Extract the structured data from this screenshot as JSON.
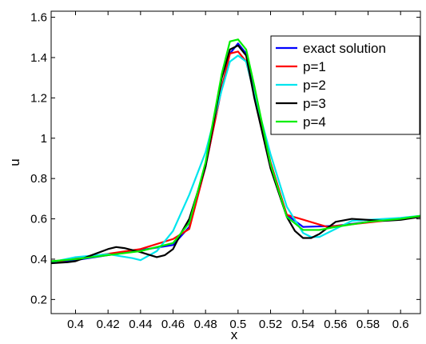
{
  "chart_data": {
    "type": "line",
    "xlabel": "x",
    "ylabel": "u",
    "xlim": [
      0.385,
      0.6122
    ],
    "ylim": [
      0.13,
      1.63
    ],
    "xticks": [
      0.4,
      0.42,
      0.44,
      0.46,
      0.48,
      0.5,
      0.52,
      0.54,
      0.56,
      0.58,
      0.6
    ],
    "xtick_labels": [
      "0.4",
      "0.42",
      "0.44",
      "0.46",
      "0.48",
      "0.5",
      "0.52",
      "0.54",
      "0.56",
      "0.58",
      "0.6"
    ],
    "yticks": [
      0.2,
      0.4,
      0.6,
      0.8,
      1.0,
      1.2,
      1.4,
      1.6
    ],
    "ytick_labels": [
      "0.2",
      "0.4",
      "0.6",
      "0.8",
      "1",
      "1.2",
      "1.4",
      "1.6"
    ],
    "grid": false,
    "legend_position": "top-right",
    "series": [
      {
        "name": "exact solution",
        "color": "#0000ff",
        "x": [
          0.385,
          0.4,
          0.42,
          0.44,
          0.46,
          0.47,
          0.48,
          0.49,
          0.495,
          0.5,
          0.505,
          0.51,
          0.52,
          0.53,
          0.54,
          0.56,
          0.58,
          0.6,
          0.6122
        ],
        "y": [
          0.38,
          0.395,
          0.42,
          0.445,
          0.47,
          0.56,
          0.86,
          1.25,
          1.42,
          1.47,
          1.42,
          1.25,
          0.86,
          0.62,
          0.56,
          0.565,
          0.585,
          0.6,
          0.615
        ]
      },
      {
        "name": "p=1",
        "color": "#ff0000",
        "x": [
          0.385,
          0.44,
          0.46,
          0.47,
          0.48,
          0.49,
          0.495,
          0.5,
          0.505,
          0.51,
          0.52,
          0.53,
          0.555,
          0.6122
        ],
        "y": [
          0.385,
          0.45,
          0.5,
          0.55,
          0.86,
          1.25,
          1.42,
          1.43,
          1.38,
          1.22,
          0.88,
          0.62,
          0.56,
          0.61
        ]
      },
      {
        "name": "p=2",
        "color": "#00e5ee",
        "x": [
          0.385,
          0.4,
          0.42,
          0.435,
          0.44,
          0.45,
          0.46,
          0.47,
          0.48,
          0.49,
          0.495,
          0.5,
          0.505,
          0.51,
          0.52,
          0.53,
          0.54,
          0.545,
          0.55,
          0.56,
          0.57,
          0.6,
          0.6122
        ],
        "y": [
          0.385,
          0.41,
          0.425,
          0.405,
          0.395,
          0.44,
          0.54,
          0.72,
          0.93,
          1.24,
          1.38,
          1.41,
          1.38,
          1.22,
          0.92,
          0.66,
          0.53,
          0.51,
          0.51,
          0.55,
          0.59,
          0.605,
          0.615
        ]
      },
      {
        "name": "p=3",
        "color": "#000000",
        "x": [
          0.385,
          0.395,
          0.4,
          0.41,
          0.42,
          0.425,
          0.43,
          0.44,
          0.45,
          0.455,
          0.46,
          0.465,
          0.47,
          0.48,
          0.49,
          0.495,
          0.5,
          0.505,
          0.51,
          0.52,
          0.53,
          0.535,
          0.54,
          0.545,
          0.55,
          0.56,
          0.57,
          0.58,
          0.59,
          0.6,
          0.6122
        ],
        "y": [
          0.38,
          0.385,
          0.39,
          0.42,
          0.45,
          0.46,
          0.455,
          0.435,
          0.41,
          0.42,
          0.45,
          0.53,
          0.6,
          0.86,
          1.3,
          1.44,
          1.46,
          1.41,
          1.2,
          0.85,
          0.61,
          0.54,
          0.505,
          0.505,
          0.525,
          0.585,
          0.6,
          0.595,
          0.59,
          0.595,
          0.61
        ]
      },
      {
        "name": "p=4",
        "color": "#00ee00",
        "x": [
          0.385,
          0.4,
          0.42,
          0.44,
          0.46,
          0.47,
          0.48,
          0.49,
          0.495,
          0.5,
          0.505,
          0.51,
          0.52,
          0.53,
          0.54,
          0.55,
          0.56,
          0.58,
          0.6,
          0.6122
        ],
        "y": [
          0.39,
          0.4,
          0.42,
          0.44,
          0.48,
          0.58,
          0.88,
          1.32,
          1.48,
          1.49,
          1.44,
          1.26,
          0.87,
          0.61,
          0.545,
          0.545,
          0.56,
          0.585,
          0.6,
          0.615
        ]
      }
    ]
  }
}
